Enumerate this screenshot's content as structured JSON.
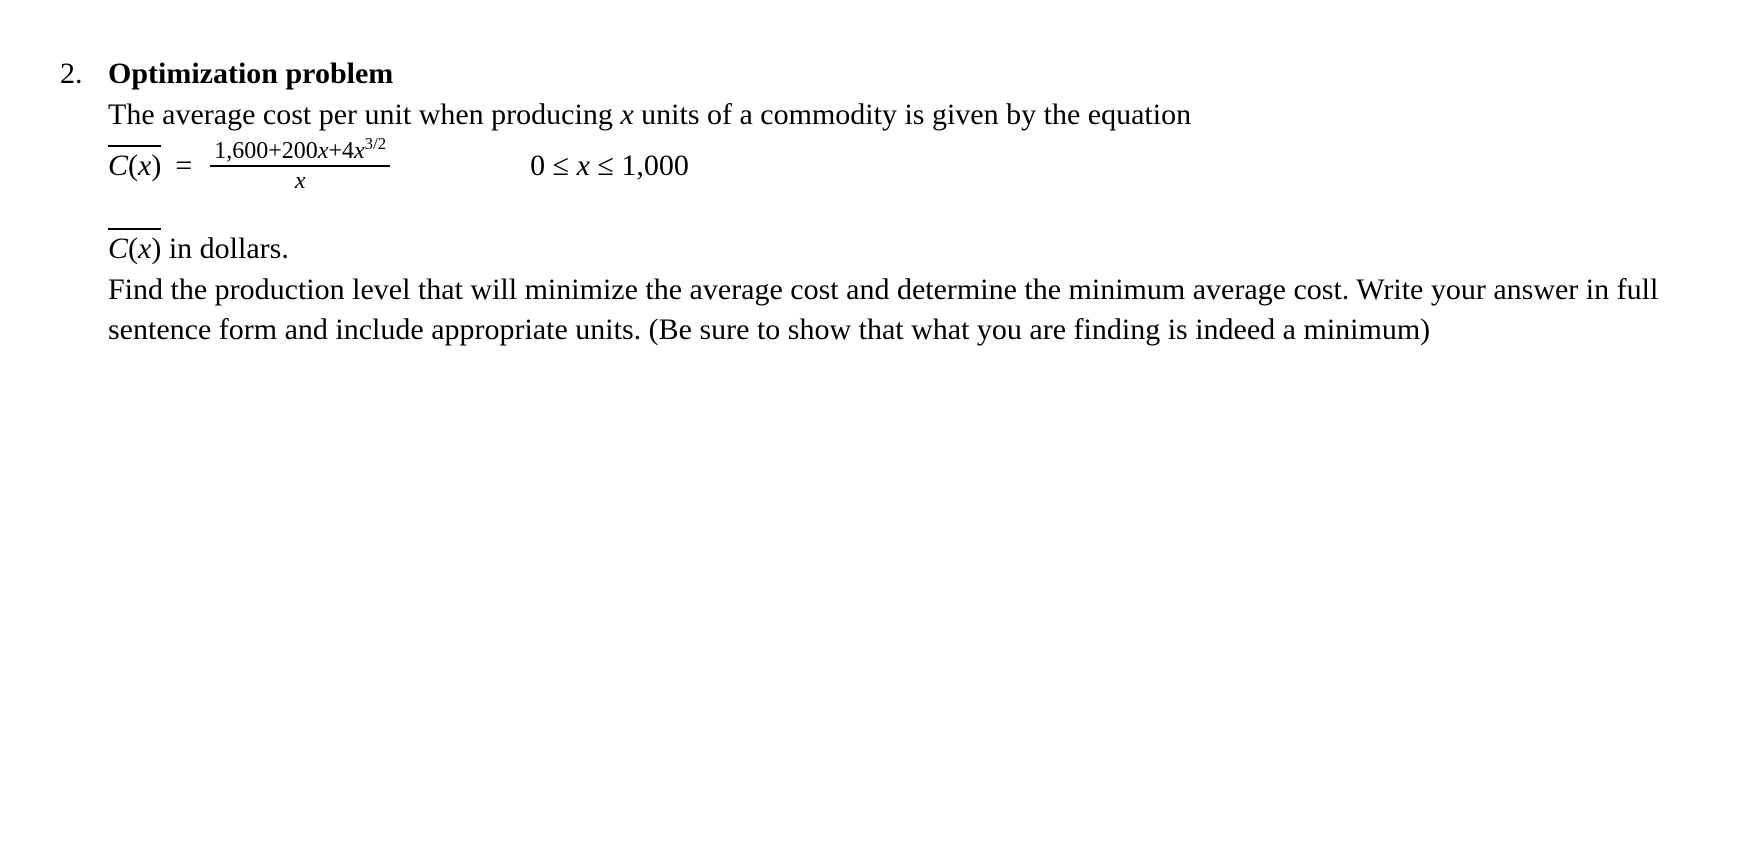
{
  "problem_number": "2.",
  "title": "Optimization problem",
  "intro_a": "The average cost per unit when producing ",
  "intro_var": "x",
  "intro_b": " units of a commodity is given by the equation",
  "cbar_C": "C",
  "cbar_open": "(",
  "cbar_x": "x",
  "cbar_close": ")",
  "equals": "=",
  "numerator_a": "1,600+200",
  "numerator_x1": "x",
  "numerator_b": "+4",
  "numerator_x2": "x",
  "numerator_exp": "3/2",
  "denominator": "x",
  "domain_a": "0 ≤ ",
  "domain_x": "x",
  "domain_b": " ≤ 1,000",
  "p2_a_C": "C",
  "p2_a_open": "(",
  "p2_a_x": "x",
  "p2_a_close": ")",
  "p2_text": " in dollars.",
  "p3": "Find the production level that will minimize the average cost and determine the minimum average cost. Write your answer in full sentence form and include appropriate units. (Be sure to show that what you are finding is indeed a minimum)"
}
